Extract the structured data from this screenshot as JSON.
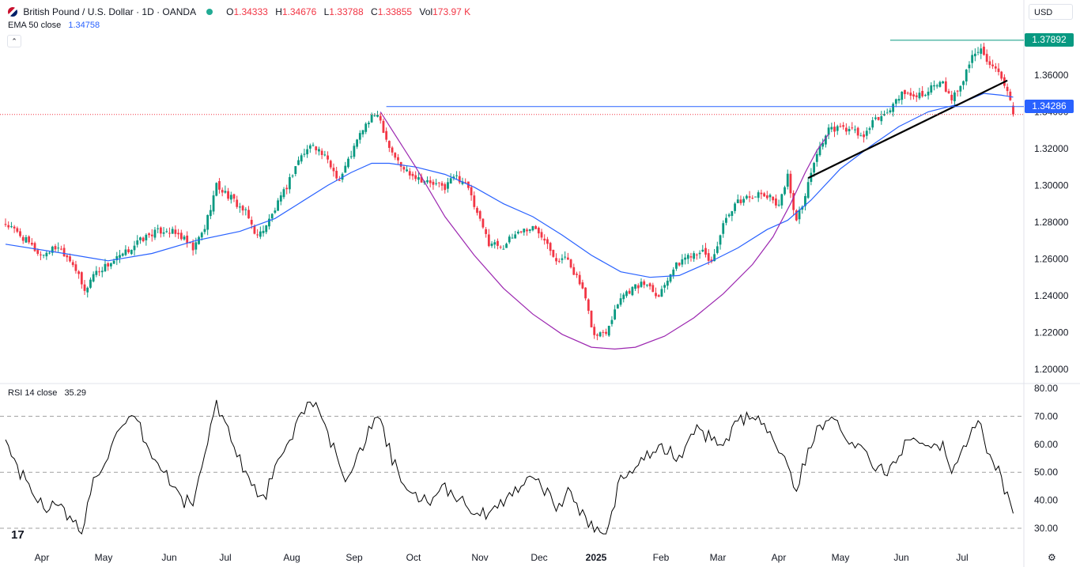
{
  "header": {
    "symbol": "British Pound / U.S. Dollar · 1D · OANDA",
    "ohlc": [
      {
        "k": "O",
        "v": "1.34333"
      },
      {
        "k": "H",
        "v": "1.34676"
      },
      {
        "k": "L",
        "v": "1.33788"
      },
      {
        "k": "C",
        "v": "1.33855"
      },
      {
        "k": "Vol",
        "v": "173.97 K"
      }
    ],
    "ema_label": "EMA 50 close",
    "ema_value": "1.34758",
    "rsi_label": "RSI 14 close",
    "rsi_value": "35.29",
    "currency": "USD",
    "collapse_icon": "chevron-up-icon"
  },
  "colors": {
    "up": "#089981",
    "down": "#f23645",
    "ema": "#2962ff",
    "cup": "#9c27b0",
    "trendline": "#000000",
    "hline": "#2962ff",
    "rsi": "#000000",
    "highbox": "#089981",
    "levelbox": "#2962ff"
  },
  "chart_data": [
    {
      "type": "candlestick",
      "title": "British Pound / U.S. Dollar · 1D · OANDA",
      "ylim": [
        1.19,
        1.385
      ],
      "y_ticks": [
        "1.20000",
        "1.22000",
        "1.24000",
        "1.26000",
        "1.28000",
        "1.30000",
        "1.32000",
        "1.34000",
        "1.36000"
      ],
      "x_ticks": [
        "Apr",
        "May",
        "Jun",
        "Jul",
        "Aug",
        "Sep",
        "Oct",
        "Nov",
        "Dec",
        "2025",
        "Feb",
        "Mar",
        "Apr",
        "May",
        "Jun",
        "Jul"
      ],
      "close_path": [
        [
          0,
          1.279
        ],
        [
          5,
          1.273
        ],
        [
          12,
          1.262
        ],
        [
          18,
          1.267
        ],
        [
          23,
          1.258
        ],
        [
          27,
          1.242
        ],
        [
          30,
          1.252
        ],
        [
          34,
          1.256
        ],
        [
          40,
          1.262
        ],
        [
          45,
          1.269
        ],
        [
          50,
          1.274
        ],
        [
          55,
          1.276
        ],
        [
          60,
          1.272
        ],
        [
          64,
          1.265
        ],
        [
          68,
          1.277
        ],
        [
          72,
          1.3
        ],
        [
          77,
          1.293
        ],
        [
          82,
          1.285
        ],
        [
          86,
          1.272
        ],
        [
          90,
          1.281
        ],
        [
          95,
          1.296
        ],
        [
          100,
          1.314
        ],
        [
          105,
          1.323
        ],
        [
          110,
          1.313
        ],
        [
          114,
          1.303
        ],
        [
          118,
          1.317
        ],
        [
          122,
          1.331
        ],
        [
          127,
          1.34
        ],
        [
          131,
          1.321
        ],
        [
          135,
          1.31
        ],
        [
          140,
          1.305
        ],
        [
          145,
          1.301
        ],
        [
          150,
          1.299
        ],
        [
          153,
          1.305
        ],
        [
          157,
          1.302
        ],
        [
          161,
          1.284
        ],
        [
          165,
          1.269
        ],
        [
          170,
          1.267
        ],
        [
          175,
          1.275
        ],
        [
          180,
          1.277
        ],
        [
          184,
          1.272
        ],
        [
          188,
          1.26
        ],
        [
          192,
          1.26
        ],
        [
          197,
          1.243
        ],
        [
          201,
          1.218
        ],
        [
          205,
          1.221
        ],
        [
          210,
          1.24
        ],
        [
          215,
          1.245
        ],
        [
          219,
          1.247
        ],
        [
          223,
          1.24
        ],
        [
          227,
          1.253
        ],
        [
          232,
          1.261
        ],
        [
          237,
          1.265
        ],
        [
          241,
          1.258
        ],
        [
          245,
          1.278
        ],
        [
          250,
          1.291
        ],
        [
          255,
          1.295
        ],
        [
          260,
          1.294
        ],
        [
          264,
          1.29
        ],
        [
          267,
          1.305
        ],
        [
          270,
          1.28
        ],
        [
          273,
          1.295
        ],
        [
          277,
          1.318
        ],
        [
          281,
          1.33
        ],
        [
          285,
          1.331
        ],
        [
          289,
          1.33
        ],
        [
          293,
          1.326
        ],
        [
          297,
          1.336
        ],
        [
          301,
          1.339
        ],
        [
          305,
          1.349
        ],
        [
          309,
          1.349
        ],
        [
          313,
          1.35
        ],
        [
          317,
          1.354
        ],
        [
          320,
          1.355
        ],
        [
          323,
          1.346
        ],
        [
          327,
          1.358
        ],
        [
          330,
          1.37
        ],
        [
          333,
          1.376
        ],
        [
          336,
          1.365
        ],
        [
          339,
          1.36
        ],
        [
          342,
          1.35
        ],
        [
          344,
          1.339
        ]
      ],
      "series": [
        {
          "name": "EMA 50 close",
          "points": [
            [
              0,
              1.268
            ],
            [
              20,
              1.263
            ],
            [
              35,
              1.259
            ],
            [
              50,
              1.263
            ],
            [
              65,
              1.27
            ],
            [
              80,
              1.275
            ],
            [
              92,
              1.282
            ],
            [
              100,
              1.29
            ],
            [
              110,
              1.3
            ],
            [
              118,
              1.307
            ],
            [
              125,
              1.312
            ],
            [
              131,
              1.312
            ],
            [
              140,
              1.31
            ],
            [
              150,
              1.306
            ],
            [
              160,
              1.299
            ],
            [
              170,
              1.29
            ],
            [
              180,
              1.283
            ],
            [
              190,
              1.273
            ],
            [
              200,
              1.262
            ],
            [
              210,
              1.253
            ],
            [
              220,
              1.25
            ],
            [
              230,
              1.251
            ],
            [
              240,
              1.258
            ],
            [
              250,
              1.266
            ],
            [
              260,
              1.276
            ],
            [
              267,
              1.281
            ],
            [
              275,
              1.292
            ],
            [
              285,
              1.309
            ],
            [
              295,
              1.321
            ],
            [
              305,
              1.332
            ],
            [
              315,
              1.34
            ],
            [
              325,
              1.344
            ],
            [
              334,
              1.35
            ],
            [
              340,
              1.349
            ],
            [
              344,
              1.348
            ]
          ]
        },
        {
          "name": "cup",
          "points": [
            [
              128,
              1.34
            ],
            [
              140,
              1.31
            ],
            [
              150,
              1.283
            ],
            [
              160,
              1.262
            ],
            [
              170,
              1.244
            ],
            [
              180,
              1.23
            ],
            [
              190,
              1.219
            ],
            [
              200,
              1.212
            ],
            [
              208,
              1.211
            ],
            [
              215,
              1.212
            ],
            [
              225,
              1.218
            ],
            [
              235,
              1.228
            ],
            [
              245,
              1.241
            ],
            [
              255,
              1.257
            ],
            [
              262,
              1.272
            ],
            [
              268,
              1.29
            ],
            [
              273,
              1.307
            ],
            [
              277,
              1.319
            ],
            [
              281,
              1.328
            ]
          ]
        },
        {
          "name": "trendline",
          "points": [
            [
              274,
              1.304
            ],
            [
              342,
              1.357
            ]
          ]
        }
      ],
      "annotations": {
        "resistance_level": 1.34286,
        "high_level": 1.37892,
        "last_close": 1.33855
      }
    },
    {
      "type": "line",
      "title": "RSI 14 close",
      "ylim": [
        27,
        82
      ],
      "y_ticks": [
        "30.00",
        "40.00",
        "50.00",
        "60.00",
        "70.00",
        "80.00"
      ],
      "guide_levels": [
        30,
        50,
        70
      ],
      "values_path": [
        [
          0,
          61
        ],
        [
          5,
          50
        ],
        [
          9,
          43
        ],
        [
          14,
          38
        ],
        [
          18,
          38
        ],
        [
          22,
          33
        ],
        [
          26,
          29
        ],
        [
          30,
          47
        ],
        [
          34,
          55
        ],
        [
          38,
          62
        ],
        [
          42,
          68
        ],
        [
          45,
          68
        ],
        [
          50,
          55
        ],
        [
          55,
          49
        ],
        [
          60,
          40
        ],
        [
          64,
          39
        ],
        [
          68,
          56
        ],
        [
          72,
          75
        ],
        [
          76,
          65
        ],
        [
          80,
          55
        ],
        [
          84,
          45
        ],
        [
          88,
          40
        ],
        [
          92,
          51
        ],
        [
          96,
          58
        ],
        [
          100,
          69
        ],
        [
          104,
          77
        ],
        [
          108,
          68
        ],
        [
          112,
          58
        ],
        [
          116,
          48
        ],
        [
          120,
          56
        ],
        [
          124,
          64
        ],
        [
          127,
          70
        ],
        [
          131,
          58
        ],
        [
          135,
          46
        ],
        [
          140,
          41
        ],
        [
          146,
          40
        ],
        [
          150,
          44
        ],
        [
          155,
          41
        ],
        [
          160,
          36
        ],
        [
          165,
          34
        ],
        [
          170,
          40
        ],
        [
          175,
          45
        ],
        [
          180,
          49
        ],
        [
          184,
          44
        ],
        [
          188,
          37
        ],
        [
          192,
          43
        ],
        [
          197,
          35
        ],
        [
          201,
          30
        ],
        [
          205,
          30
        ],
        [
          210,
          47
        ],
        [
          215,
          53
        ],
        [
          220,
          57
        ],
        [
          225,
          58
        ],
        [
          230,
          55
        ],
        [
          235,
          65
        ],
        [
          240,
          63
        ],
        [
          245,
          60
        ],
        [
          250,
          68
        ],
        [
          255,
          70
        ],
        [
          260,
          66
        ],
        [
          264,
          59
        ],
        [
          267,
          52
        ],
        [
          270,
          43
        ],
        [
          273,
          55
        ],
        [
          277,
          64
        ],
        [
          281,
          71
        ],
        [
          285,
          66
        ],
        [
          289,
          61
        ],
        [
          293,
          58
        ],
        [
          297,
          51
        ],
        [
          301,
          50
        ],
        [
          305,
          57
        ],
        [
          309,
          63
        ],
        [
          313,
          62
        ],
        [
          317,
          60
        ],
        [
          320,
          60
        ],
        [
          323,
          49
        ],
        [
          327,
          57
        ],
        [
          330,
          66
        ],
        [
          333,
          67
        ],
        [
          336,
          55
        ],
        [
          339,
          50
        ],
        [
          342,
          42
        ],
        [
          344,
          35
        ]
      ]
    }
  ]
}
